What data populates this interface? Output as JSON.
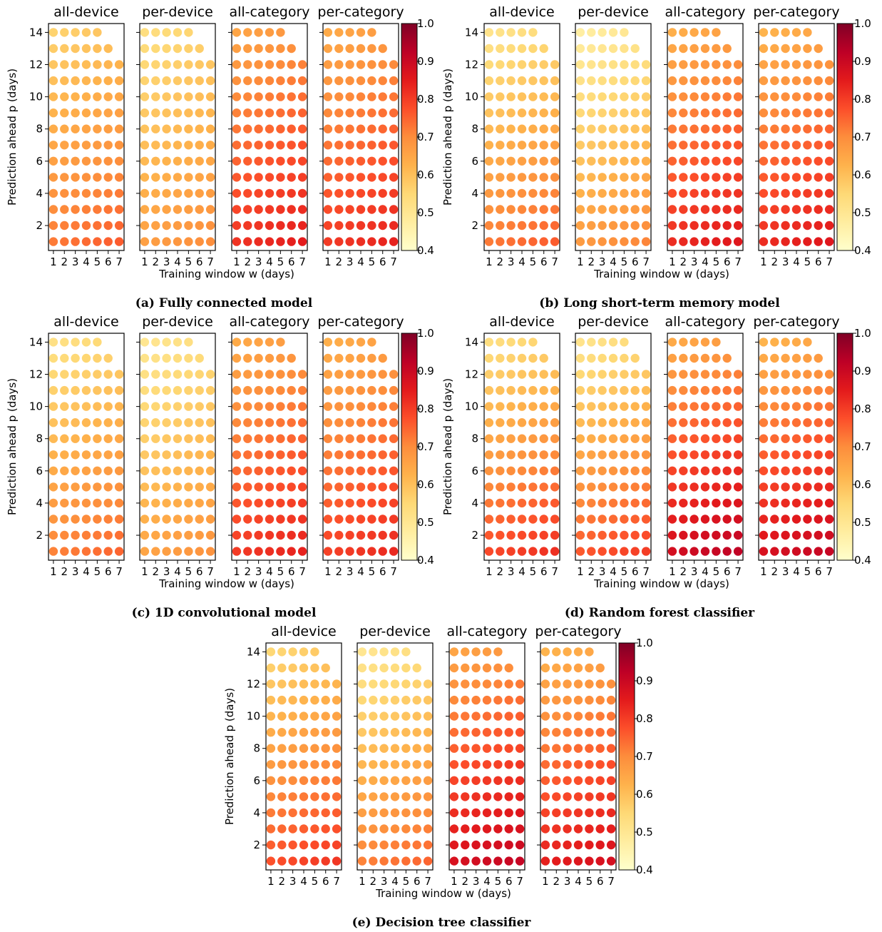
{
  "panel_titles": [
    "all-device",
    "per-device",
    "all-category",
    "per-category"
  ],
  "ylabel": "Prediction ahead p (days)",
  "xlabel": "Training window w (days)",
  "x_ticks": [
    1,
    2,
    3,
    4,
    5,
    6,
    7
  ],
  "y_ticks": [
    2,
    4,
    6,
    8,
    10,
    12,
    14
  ],
  "colorbar_ticks": [
    "1.0",
    "0.9",
    "0.8",
    "0.7",
    "0.6",
    "0.5",
    "0.4"
  ],
  "colors": {
    "colormap": "YlOrRd",
    "scale": [
      "#ffffcc",
      "#ffeda0",
      "#fed976",
      "#feb24c",
      "#fd8d3c",
      "#fc4e2a",
      "#e31a1c",
      "#bd0026",
      "#800026"
    ]
  },
  "chart_data": [
    {
      "type": "scatter",
      "caption": "(a) Fully connected model",
      "xlim": [
        1,
        7
      ],
      "ylim": [
        1,
        14
      ],
      "clim": [
        0.4,
        1.0
      ],
      "panels": [
        {
          "title": "all-device",
          "valid_cells": "w + p <= 19",
          "value_top": 0.58,
          "value_bottom": 0.74
        },
        {
          "title": "per-device",
          "valid_cells": "w + p <= 19",
          "value_top": 0.55,
          "value_bottom": 0.68
        },
        {
          "title": "all-category",
          "valid_cells": "w + p <= 19",
          "value_top": 0.67,
          "value_bottom": 0.83
        },
        {
          "title": "per-category",
          "valid_cells": "w + p <= 19",
          "value_top": 0.66,
          "value_bottom": 0.82
        }
      ]
    },
    {
      "type": "scatter",
      "caption": "(b) Long short-term memory model",
      "xlim": [
        1,
        7
      ],
      "ylim": [
        1,
        14
      ],
      "clim": [
        0.4,
        1.0
      ],
      "panels": [
        {
          "title": "all-device",
          "valid_cells": "w + p <= 19",
          "value_top": 0.53,
          "value_bottom": 0.74
        },
        {
          "title": "per-device",
          "valid_cells": "w + p <= 19",
          "value_top": 0.49,
          "value_bottom": 0.69
        },
        {
          "title": "all-category",
          "valid_cells": "w + p <= 19",
          "value_top": 0.65,
          "value_bottom": 0.84
        },
        {
          "title": "per-category",
          "valid_cells": "w + p <= 19",
          "value_top": 0.64,
          "value_bottom": 0.84
        }
      ]
    },
    {
      "type": "scatter",
      "caption": "(c) 1D convolutional model",
      "xlim": [
        1,
        7
      ],
      "ylim": [
        1,
        14
      ],
      "clim": [
        0.4,
        1.0
      ],
      "panels": [
        {
          "title": "all-device",
          "valid_cells": "w + p <= 19",
          "value_top": 0.54,
          "value_bottom": 0.73
        },
        {
          "title": "per-device",
          "valid_cells": "w + p <= 19",
          "value_top": 0.52,
          "value_bottom": 0.67
        },
        {
          "title": "all-category",
          "valid_cells": "w + p <= 19",
          "value_top": 0.66,
          "value_bottom": 0.82
        },
        {
          "title": "per-category",
          "valid_cells": "w + p <= 19",
          "value_top": 0.65,
          "value_bottom": 0.81
        }
      ]
    },
    {
      "type": "scatter",
      "caption": "(d) Random forest classifier",
      "xlim": [
        1,
        7
      ],
      "ylim": [
        1,
        14
      ],
      "clim": [
        0.4,
        1.0
      ],
      "panels": [
        {
          "title": "all-device",
          "valid_cells": "w + p <= 19",
          "value_top": 0.55,
          "value_bottom": 0.8
        },
        {
          "title": "per-device",
          "valid_cells": "w + p <= 19",
          "value_top": 0.53,
          "value_bottom": 0.78
        },
        {
          "title": "all-category",
          "valid_cells": "w + p <= 19",
          "value_top": 0.66,
          "value_bottom": 0.9
        },
        {
          "title": "per-category",
          "valid_cells": "w + p <= 19",
          "value_top": 0.64,
          "value_bottom": 0.89
        }
      ]
    },
    {
      "type": "scatter",
      "caption": "(e) Decision tree classifier",
      "xlim": [
        1,
        7
      ],
      "ylim": [
        1,
        14
      ],
      "clim": [
        0.4,
        1.0
      ],
      "panels": [
        {
          "title": "all-device",
          "valid_cells": "w + p <= 19",
          "value_top": 0.57,
          "value_bottom": 0.79
        },
        {
          "title": "per-device",
          "valid_cells": "w + p <= 19",
          "value_top": 0.52,
          "value_bottom": 0.73
        },
        {
          "title": "all-category",
          "valid_cells": "w + p <= 19",
          "value_top": 0.67,
          "value_bottom": 0.89
        },
        {
          "title": "per-category",
          "valid_cells": "w + p <= 19",
          "value_top": 0.64,
          "value_bottom": 0.86
        }
      ]
    }
  ]
}
